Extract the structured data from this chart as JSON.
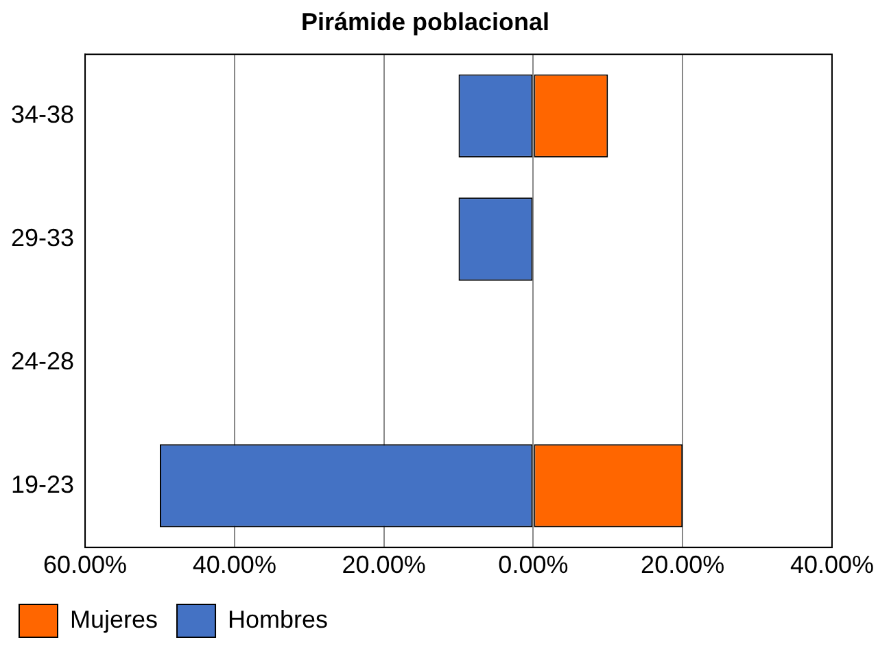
{
  "chart_data": {
    "type": "bar",
    "orientation": "horizontal",
    "stacked": true,
    "title": "Pirámide poblacional",
    "categories": [
      "34-38",
      "29-33",
      "24-28",
      "19-23"
    ],
    "series": [
      {
        "name": "Mujeres",
        "color": "#ff6600",
        "values": [
          10,
          null,
          null,
          20
        ]
      },
      {
        "name": "Hombres",
        "color": "#4472c4",
        "values": [
          -10,
          -10,
          null,
          -50
        ]
      }
    ],
    "xlim": [
      -60,
      40
    ],
    "xticks": [
      {
        "value": -60,
        "label": "60.00%"
      },
      {
        "value": -40,
        "label": "40.00%"
      },
      {
        "value": -20,
        "label": "20.00%"
      },
      {
        "value": 0,
        "label": "0.00%"
      },
      {
        "value": 20,
        "label": "20.00%"
      },
      {
        "value": 40,
        "label": "40.00%"
      }
    ],
    "grid": "x",
    "legend": "bottom left"
  }
}
